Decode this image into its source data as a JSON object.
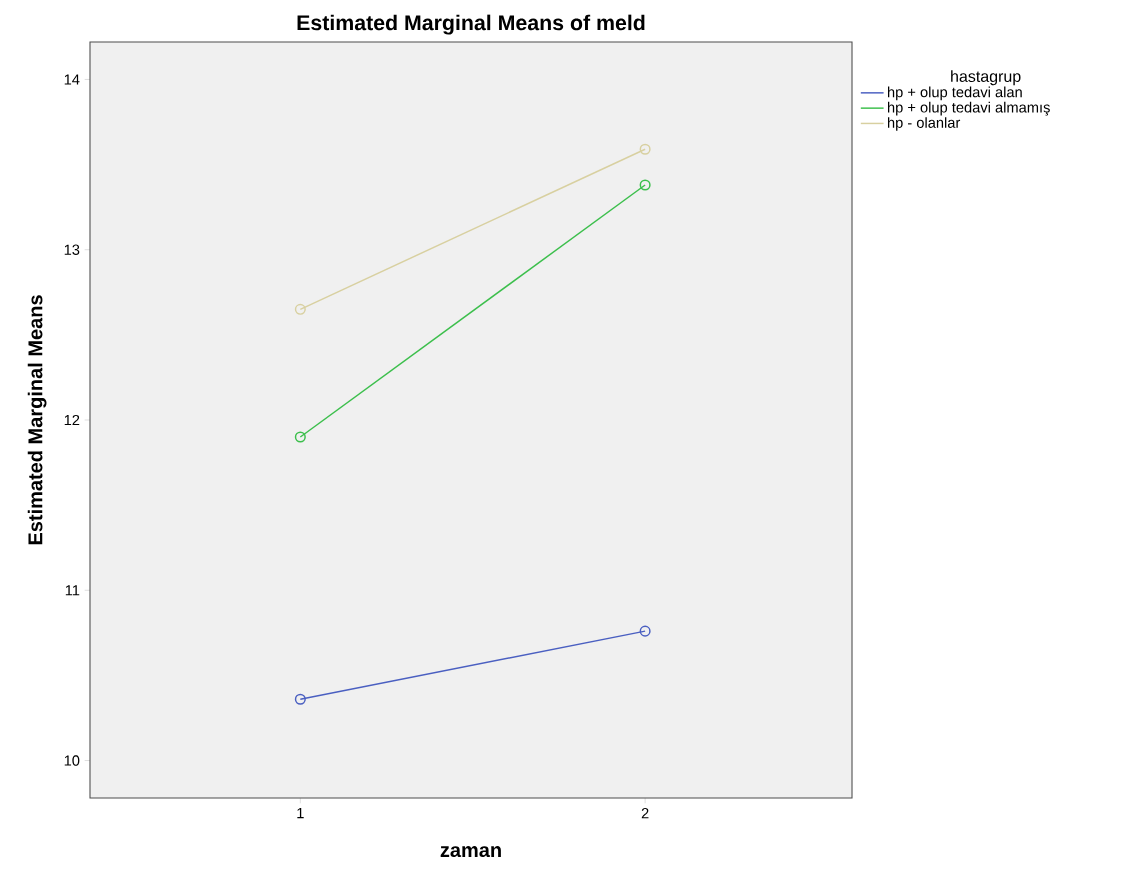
{
  "chart_data": {
    "type": "line",
    "title": "Estimated Marginal Means of meld",
    "xlabel": "zaman",
    "ylabel": "Estimated Marginal Means",
    "legend_title": "hastagrup",
    "categories": [
      "1",
      "2"
    ],
    "series": [
      {
        "name": "hp + olup tedavi alan",
        "color": "#4a5fc1",
        "values": [
          10.36,
          10.76
        ]
      },
      {
        "name": "hp + olup tedavi almamış",
        "color": "#3cbf4c",
        "values": [
          11.9,
          13.38
        ]
      },
      {
        "name": "hp - olanlar",
        "color": "#d8d0a0",
        "values": [
          12.65,
          13.59
        ]
      }
    ],
    "ylim": [
      9.78,
      14.22
    ],
    "yticks": [
      10,
      11,
      12,
      13,
      14
    ],
    "grid": false,
    "legend": "top right",
    "marker": "circle",
    "line_style": "solid"
  }
}
